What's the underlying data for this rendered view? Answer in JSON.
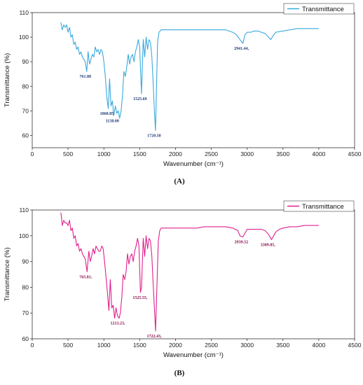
{
  "chart_data": [
    {
      "panel": "(A)",
      "type": "line",
      "xlabel": "Wavenumber (cm⁻¹)",
      "ylabel": "Transmittance (%)",
      "xlim": [
        0,
        4500
      ],
      "ylim": [
        55,
        110
      ],
      "xticks": [
        0,
        500,
        1000,
        1500,
        2000,
        2500,
        3000,
        3500,
        4000,
        4500
      ],
      "yticks": [
        60,
        70,
        80,
        90,
        100,
        110
      ],
      "legend": "top-right",
      "color": "#3aa9dd",
      "annotation_color": "#1f3a7a",
      "series": [
        {
          "name": "Transmittance",
          "x": [
            400,
            420,
            440,
            460,
            480,
            500,
            520,
            540,
            560,
            580,
            600,
            620,
            640,
            660,
            680,
            700,
            720,
            740,
            761,
            780,
            800,
            820,
            840,
            860,
            880,
            900,
            920,
            940,
            960,
            980,
            1000,
            1020,
            1040,
            1061,
            1080,
            1100,
            1120,
            1138,
            1160,
            1180,
            1200,
            1220,
            1240,
            1260,
            1280,
            1300,
            1320,
            1340,
            1360,
            1380,
            1400,
            1420,
            1440,
            1460,
            1480,
            1500,
            1525,
            1550,
            1570,
            1590,
            1610,
            1630,
            1650,
            1670,
            1690,
            1705,
            1721,
            1735,
            1750,
            1770,
            1800,
            1850,
            1900,
            2000,
            2100,
            2200,
            2300,
            2400,
            2500,
            2600,
            2700,
            2800,
            2850,
            2900,
            2941,
            2970,
            3000,
            3050,
            3100,
            3150,
            3200,
            3250,
            3300,
            3330,
            3360,
            3400,
            3500,
            3600,
            3700,
            3800,
            3900,
            4000
          ],
          "y": [
            106,
            103,
            105,
            104,
            105,
            102,
            104,
            100,
            101,
            97,
            98,
            95,
            96,
            93,
            94,
            92,
            91,
            90,
            86,
            94,
            89,
            91,
            93,
            92,
            96,
            94,
            95,
            93,
            95,
            94,
            90,
            84,
            76,
            71,
            83,
            72,
            74,
            68,
            72,
            69,
            70,
            67,
            70,
            76,
            86,
            84,
            88,
            93,
            89,
            92,
            93,
            90,
            94,
            96,
            99,
            96,
            77,
            99,
            92,
            100,
            95,
            99,
            98,
            92,
            80,
            70,
            62,
            80,
            98,
            102,
            103,
            103,
            103,
            103,
            103,
            103,
            103,
            103,
            103,
            103,
            103,
            102,
            101,
            99,
            97.5,
            101,
            102,
            102,
            102.5,
            102.5,
            102,
            101.5,
            100,
            99,
            100.5,
            102,
            102.5,
            103,
            103.5,
            103.5,
            103.5,
            103.5
          ]
        }
      ],
      "annotations": [
        {
          "text": "761.88",
          "x": 761,
          "y": 86
        },
        {
          "text": "1060.85",
          "x": 1060,
          "y": 71
        },
        {
          "text": "1138.00",
          "x": 1138,
          "y": 68
        },
        {
          "text": "1525.69",
          "x": 1525,
          "y": 77
        },
        {
          "text": "1720.50",
          "x": 1720,
          "y": 62
        },
        {
          "text": "2941.44,",
          "x": 2941,
          "y": 97.5
        }
      ]
    },
    {
      "panel": "(B)",
      "type": "line",
      "xlabel": "Wavenumber (cm⁻¹)",
      "ylabel": "Transmittance (%)",
      "xlim": [
        0,
        4500
      ],
      "ylim": [
        60,
        110
      ],
      "xticks": [
        0,
        500,
        1000,
        1500,
        2000,
        2500,
        3000,
        3500,
        4000,
        4500
      ],
      "yticks": [
        60,
        70,
        80,
        90,
        100,
        110
      ],
      "legend": "top-right",
      "color": "#e0208f",
      "annotation_color": "#8b0f4f",
      "series": [
        {
          "name": "Transmittance",
          "x": [
            400,
            420,
            440,
            460,
            480,
            500,
            520,
            540,
            560,
            580,
            600,
            620,
            640,
            660,
            680,
            700,
            720,
            740,
            765,
            790,
            810,
            830,
            850,
            870,
            890,
            910,
            930,
            950,
            970,
            990,
            1010,
            1030,
            1050,
            1070,
            1090,
            1110,
            1130,
            1150,
            1170,
            1190,
            1213,
            1230,
            1250,
            1270,
            1290,
            1310,
            1330,
            1350,
            1370,
            1390,
            1410,
            1430,
            1450,
            1470,
            1490,
            1510,
            1525,
            1550,
            1570,
            1590,
            1610,
            1630,
            1650,
            1670,
            1690,
            1705,
            1722,
            1740,
            1760,
            1780,
            1800,
            1850,
            1900,
            2000,
            2100,
            2200,
            2300,
            2400,
            2500,
            2600,
            2700,
            2800,
            2870,
            2900,
            2939,
            2970,
            3000,
            3100,
            3200,
            3250,
            3300,
            3340,
            3370,
            3400,
            3450,
            3500,
            3600,
            3700,
            3800,
            3900,
            4000
          ],
          "y": [
            109,
            104,
            106,
            105,
            105,
            104,
            106,
            102,
            103,
            99,
            100,
            96,
            97,
            94,
            95,
            93,
            92,
            91,
            86,
            94,
            90,
            92,
            95,
            93,
            96,
            95,
            94,
            94,
            96,
            95,
            90,
            84,
            78,
            71,
            83,
            72,
            73,
            68,
            72,
            69,
            68,
            70,
            76,
            85,
            83,
            86,
            93,
            89,
            92,
            93,
            90,
            94,
            96,
            99,
            96,
            78,
            80,
            99,
            92,
            100,
            95,
            99,
            98,
            92,
            80,
            72,
            63,
            80,
            98,
            102,
            103,
            103,
            103,
            103,
            103,
            103,
            103,
            103.5,
            103.5,
            103.5,
            103.5,
            103,
            102,
            100,
            99.5,
            101,
            102.5,
            102.5,
            102.5,
            102,
            100.5,
            98.5,
            100,
            101.5,
            102.5,
            103,
            103.5,
            103.5,
            104,
            104,
            104
          ]
        }
      ],
      "annotations": [
        {
          "text": "765.81,",
          "x": 765,
          "y": 86
        },
        {
          "text": "1213.23,",
          "x": 1213,
          "y": 68
        },
        {
          "text": "1525.55,",
          "x": 1525,
          "y": 78
        },
        {
          "text": "1722.43,",
          "x": 1722,
          "y": 63
        },
        {
          "text": "2939.52",
          "x": 2939,
          "y": 99.5
        },
        {
          "text": "3309.85,",
          "x": 3309,
          "y": 98.5
        }
      ]
    }
  ]
}
